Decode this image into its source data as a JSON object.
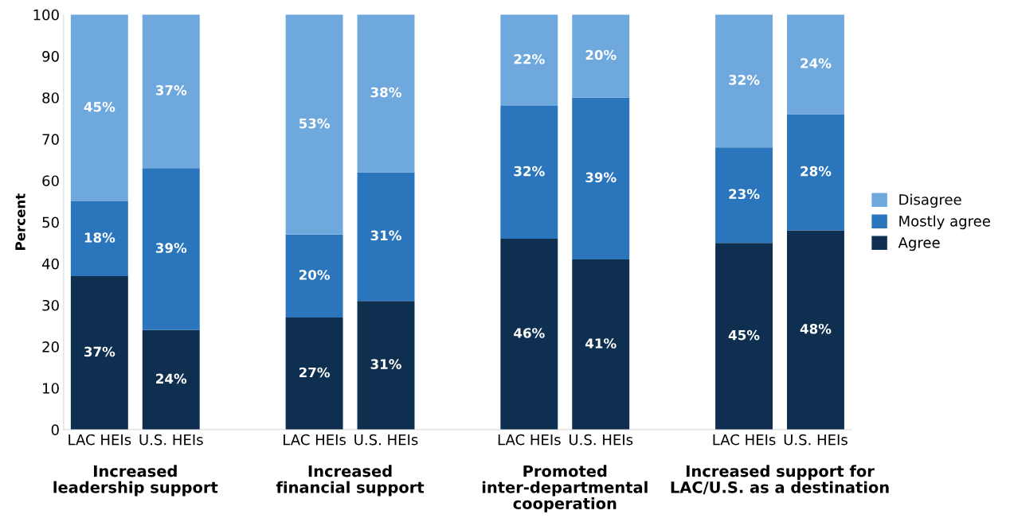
{
  "chart_data": {
    "type": "bar",
    "stacked": true,
    "ylabel": "Percent",
    "categories": [
      "LAC HEIs",
      "U.S. HEIs",
      null,
      "LAC HEIs",
      "U.S. HEIs",
      null,
      "LAC HEIs",
      "U.S. HEIs",
      null,
      "LAC HEIs",
      "U.S. HEIs"
    ],
    "series": [
      {
        "name": "Agree",
        "color": "#0e2f50",
        "values": [
          37,
          24,
          null,
          27,
          31,
          null,
          46,
          41,
          null,
          45,
          48
        ],
        "value_labels": [
          "37%",
          "24%",
          null,
          "27%",
          "31%",
          null,
          "46%",
          "41%",
          null,
          "45%",
          "48%"
        ]
      },
      {
        "name": "Mostly agree",
        "color": "#2a75bb",
        "values": [
          18,
          39,
          null,
          20,
          31,
          null,
          32,
          39,
          null,
          23,
          28
        ],
        "value_labels": [
          "18%",
          "39%",
          null,
          "20%",
          "31%",
          null,
          "32%",
          "39%",
          null,
          "23%",
          "28%"
        ]
      },
      {
        "name": "Disagree",
        "color": "#6fa8dc",
        "values": [
          45,
          37,
          null,
          53,
          38,
          null,
          22,
          20,
          null,
          32,
          24
        ],
        "value_labels": [
          "45%",
          "37%",
          null,
          "53%",
          "38%",
          null,
          "22%",
          "20%",
          null,
          "32%",
          "24%"
        ]
      }
    ],
    "annotations": [
      "Increased\nleadership support",
      "Increased\nfinancial support",
      "Promoted\ninter-departmental\ncooperation",
      "Increased support for\nLAC/U.S. as a destination"
    ],
    "ylim": [
      0,
      100
    ],
    "yticks": [
      0,
      10,
      20,
      30,
      40,
      50,
      60,
      70,
      80,
      90,
      100
    ],
    "grid": false,
    "legend": "right"
  }
}
